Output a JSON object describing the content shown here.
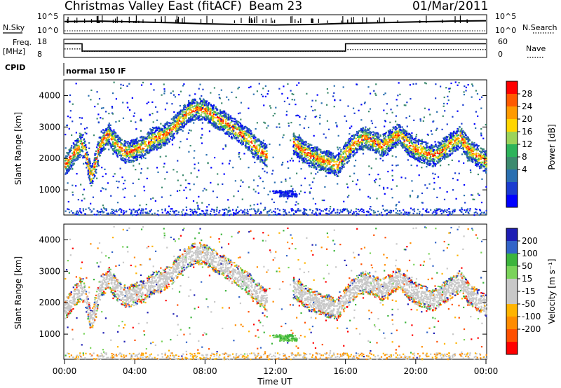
{
  "header": {
    "title_left": "Christmas Valley East (fitACF)",
    "beam": "Beam 23",
    "date": "01/Mar/2011"
  },
  "side_labels": {
    "nsky": "N.Sky",
    "nsearch": "N.Search",
    "freq_line1": "Freq.",
    "freq_line2": "[MHz]",
    "nave": "Nave",
    "cpid": "CPID",
    "cpid_value": "normal 150 IF"
  },
  "axes": {
    "x_label": "Time UT",
    "x_ticks": [
      "00:00",
      "04:00",
      "08:00",
      "12:00",
      "16:00",
      "20:00",
      "00:00"
    ],
    "y_label": "Slant Range [km]",
    "y_ticks": [
      "1000",
      "2000",
      "3000",
      "4000"
    ],
    "noise_left_ticks": [
      "10^5",
      "10^0"
    ],
    "noise_right_ticks": [
      "10^5",
      "10^0"
    ],
    "freq_left_ticks": [
      "18",
      "8"
    ],
    "freq_right_ticks": [
      "60",
      "0"
    ]
  },
  "colorbars": {
    "power": {
      "label": "Power [dB]",
      "ticks": [
        "28",
        "24",
        "20",
        "16",
        "12",
        "8",
        "4"
      ],
      "colors": [
        "#ff0000",
        "#ff5a00",
        "#ff9a00",
        "#ffd500",
        "#9bd35a",
        "#2db35a",
        "#3c8a6e",
        "#2a6fb0",
        "#1a3cd0",
        "#0000ff"
      ]
    },
    "velocity": {
      "label": "Velocity [m s⁻¹]",
      "ticks": [
        "200",
        "100",
        "50",
        "15",
        "-15",
        "-50",
        "-100",
        "-200"
      ],
      "colors": [
        "#1e1eb4",
        "#3264c8",
        "#3cb43c",
        "#7ad35a",
        "#c8c8c8",
        "#c8c8c8",
        "#ffb400",
        "#ff8c00",
        "#ff5000",
        "#ff0000"
      ]
    }
  },
  "chart_data": [
    {
      "type": "line",
      "panel": "noise",
      "series": [
        {
          "name": "N.Sky",
          "x": [
            0,
            2,
            4,
            6,
            8,
            10,
            12,
            14,
            16,
            18,
            20,
            22,
            24
          ],
          "y": [
            3.2,
            3.3,
            3.1,
            2.9,
            2.6,
            2.4,
            2.3,
            2.4,
            2.7,
            2.9,
            3.1,
            3.3,
            3.4
          ]
        },
        {
          "name": "N.Search",
          "x": [
            0,
            4,
            8,
            12,
            16,
            20,
            24
          ],
          "y": [
            1.0,
            1.0,
            1.0,
            1.0,
            1.0,
            1.0,
            1.0
          ]
        }
      ],
      "ylim": [
        0,
        5
      ],
      "xlim": [
        0,
        24
      ]
    },
    {
      "type": "line",
      "panel": "frequency",
      "series": [
        {
          "name": "Freq.",
          "x": [
            0,
            1,
            1,
            16,
            16,
            24
          ],
          "y": [
            15.5,
            15.5,
            11.5,
            11.5,
            15.5,
            15.5
          ]
        },
        {
          "name": "Nave",
          "x": [
            0,
            1,
            1,
            16,
            16,
            24
          ],
          "y": [
            28,
            28,
            20,
            20,
            26,
            26
          ]
        }
      ],
      "xlim": [
        0,
        24
      ]
    },
    {
      "type": "heatmap",
      "panel": "power",
      "xlabel": "Time UT",
      "ylabel": "Slant Range [km]",
      "xlim": [
        0,
        24
      ],
      "ylim": [
        200,
        4500
      ],
      "colorbar_label": "Power [dB]",
      "bands": [
        {
          "t": [
            0,
            0.5,
            1.0,
            1.5,
            2.0,
            2.5,
            3.0,
            3.5,
            4.0,
            4.5,
            5.0,
            5.5,
            6.0,
            6.5,
            7.0,
            7.5,
            8.0,
            8.5,
            9.0,
            9.5,
            10.0,
            10.5,
            11.0,
            11.5
          ],
          "range": [
            1800,
            2200,
            2500,
            1400,
            2500,
            2800,
            2400,
            2200,
            2300,
            2400,
            2650,
            2700,
            2900,
            3200,
            3500,
            3600,
            3550,
            3350,
            3200,
            3000,
            2800,
            2600,
            2300,
            2100
          ]
        },
        {
          "t": [
            13.0,
            13.5,
            14.0,
            14.5,
            15.0,
            15.5,
            16.0,
            16.5,
            17.0,
            17.5,
            18.0,
            18.5,
            19.0,
            19.5,
            20.0,
            20.5,
            21.0,
            21.5,
            22.0,
            22.5,
            23.0,
            23.5,
            24.0
          ],
          "range": [
            2500,
            2300,
            2100,
            2000,
            1900,
            1800,
            2200,
            2500,
            2700,
            2600,
            2400,
            2600,
            2800,
            2500,
            2300,
            2200,
            2100,
            2300,
            2500,
            2700,
            2300,
            2100,
            1900
          ]
        }
      ],
      "patches": [
        {
          "t": [
            11.8,
            13.0
          ],
          "range": [
            900,
            1000
          ]
        },
        {
          "t": [
            12.2,
            13.2
          ],
          "range": [
            800,
            900
          ]
        }
      ]
    },
    {
      "type": "heatmap",
      "panel": "velocity",
      "xlabel": "Time UT",
      "ylabel": "Slant Range [km]",
      "xlim": [
        0,
        24
      ],
      "ylim": [
        200,
        4500
      ],
      "colorbar_label": "Velocity [m s⁻¹]"
    }
  ]
}
